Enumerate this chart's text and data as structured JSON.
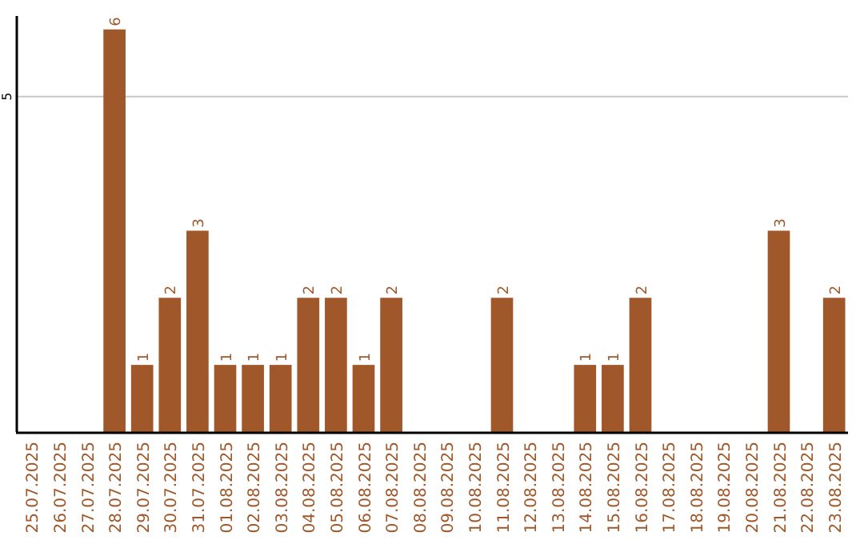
{
  "chart_data": {
    "type": "bar",
    "categories": [
      "25.07.2025",
      "26.07.2025",
      "27.07.2025",
      "28.07.2025",
      "29.07.2025",
      "30.07.2025",
      "31.07.2025",
      "01.08.2025",
      "02.08.2025",
      "03.08.2025",
      "04.08.2025",
      "05.08.2025",
      "06.08.2025",
      "07.08.2025",
      "08.08.2025",
      "09.08.2025",
      "10.08.2025",
      "11.08.2025",
      "12.08.2025",
      "13.08.2025",
      "14.08.2025",
      "15.08.2025",
      "16.08.2025",
      "17.08.2025",
      "18.08.2025",
      "19.08.2025",
      "20.08.2025",
      "21.08.2025",
      "22.08.2025",
      "23.08.2025"
    ],
    "values": [
      0,
      0,
      0,
      6,
      1,
      2,
      3,
      1,
      1,
      1,
      2,
      2,
      1,
      2,
      0,
      0,
      0,
      2,
      0,
      0,
      1,
      1,
      2,
      0,
      0,
      0,
      0,
      3,
      0,
      2
    ],
    "value_labels": [
      null,
      null,
      null,
      "6",
      "1",
      "2",
      "3",
      "1",
      "1",
      "1",
      "2",
      "2",
      "1",
      "2",
      null,
      null,
      null,
      "2",
      null,
      null,
      "1",
      "1",
      "2",
      null,
      null,
      null,
      null,
      "3",
      null,
      "2"
    ],
    "color": "#a0582a",
    "ylim": [
      0,
      6.2
    ],
    "yticks": [
      5
    ],
    "grid": "y"
  }
}
